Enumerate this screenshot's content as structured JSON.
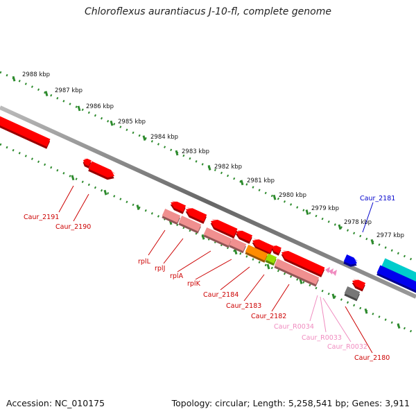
{
  "title": "Chloroflexus aurantiacus J-10-fl, complete genome",
  "accession": "Accession: NC_010175",
  "summary": "Topology: circular; Length: 5,258,541 bp; Genes: 3,911",
  "scale_ticks": [
    "2988 kbp",
    "2987 kbp",
    "2986 kbp",
    "2985 kbp",
    "2984 kbp",
    "2983 kbp",
    "2982 kbp",
    "2981 kbp",
    "2980 kbp",
    "2979 kbp",
    "2978 kbp",
    "2977 kbp"
  ],
  "gene_labels": [
    {
      "name": "Caur_2191",
      "color": "#cc0000"
    },
    {
      "name": "Caur_2190",
      "color": "#cc0000"
    },
    {
      "name": "rplL",
      "color": "#cc0000"
    },
    {
      "name": "rplJ",
      "color": "#cc0000"
    },
    {
      "name": "rplA",
      "color": "#cc0000"
    },
    {
      "name": "rplK",
      "color": "#cc0000"
    },
    {
      "name": "Caur_2184",
      "color": "#cc0000"
    },
    {
      "name": "Caur_2183",
      "color": "#cc0000"
    },
    {
      "name": "Caur_2182",
      "color": "#cc0000"
    },
    {
      "name": "Caur_R0034",
      "color": "#f08cc0"
    },
    {
      "name": "Caur_R0033",
      "color": "#f08cc0"
    },
    {
      "name": "Caur_R0032",
      "color": "#f08cc0"
    },
    {
      "name": "Caur_2180",
      "color": "#cc0000"
    },
    {
      "name": "Caur_2181",
      "color": "#0000cc"
    }
  ],
  "feature_colors": {
    "cds": "#ff0000",
    "cds_light": "#f09090",
    "orange": "#ff8c00",
    "green": "#99dd00",
    "blue": "#0000ee",
    "cyan": "#00cccc",
    "gray": "#777777",
    "rna": "#f08cc0",
    "backbone": "#888888",
    "tick_green": "#2e8b2e"
  }
}
